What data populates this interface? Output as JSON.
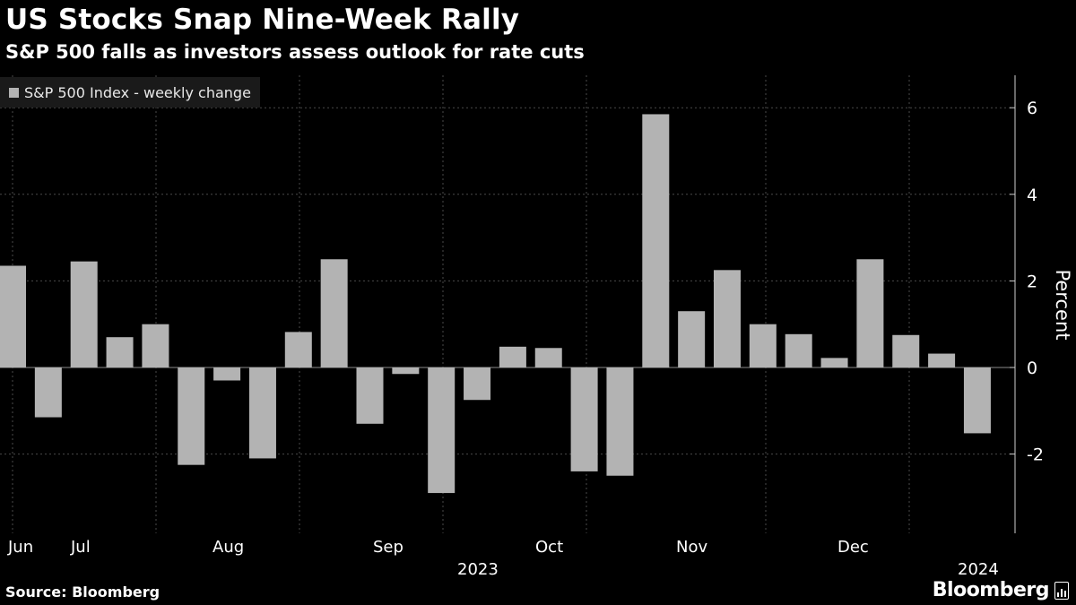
{
  "title": "US Stocks Snap Nine-Week Rally",
  "subtitle": "S&P 500 falls as investors assess outlook for rate cuts",
  "source": "Source: Bloomberg",
  "brand": "Bloomberg",
  "colors": {
    "background": "#000000",
    "bar": "#b3b3b3",
    "grid": "#4a4a4a",
    "text": "#ffffff"
  },
  "chart_data": {
    "type": "bar",
    "series": [
      {
        "name": "S&P 500 Index - weekly change",
        "values": [
          2.35,
          -1.15,
          2.45,
          0.7,
          1.0,
          -2.25,
          -0.3,
          -2.1,
          0.82,
          2.5,
          -1.3,
          -0.15,
          -2.9,
          -0.75,
          0.48,
          0.45,
          -2.4,
          -2.5,
          5.85,
          1.3,
          2.25,
          1.0,
          0.77,
          0.22,
          2.5,
          0.75,
          0.32,
          -1.52
        ]
      }
    ],
    "ylabel": "Percent",
    "ylim": [
      -3.2,
      6.7
    ],
    "yticks": [
      -2,
      0,
      2,
      4,
      6
    ],
    "month_labels": [
      "Jun",
      "Jul",
      "Aug",
      "Sep",
      "Oct",
      "Nov",
      "Dec"
    ],
    "year_labels": [
      "2023",
      "2024"
    ],
    "grid": true,
    "legend_position": "top-left"
  }
}
